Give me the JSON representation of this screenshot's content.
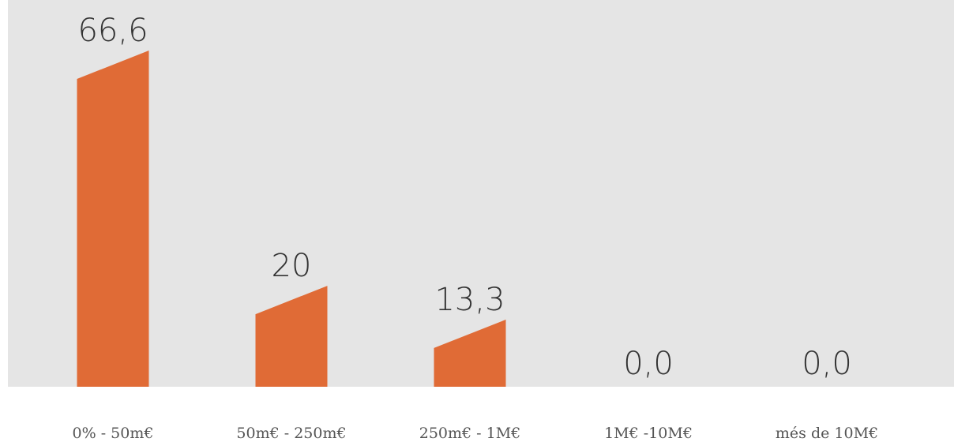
{
  "chart_data": {
    "type": "bar",
    "categories": [
      "0% - 50m€",
      "50m€ - 250m€",
      "250m€ - 1M€",
      "1M€ -10M€",
      "més de 10M€"
    ],
    "values": [
      66.6,
      20,
      13.3,
      0.0,
      0.0
    ],
    "value_labels": [
      "66,6",
      "20",
      "13,3",
      "0,0",
      "0,0"
    ],
    "ylim": [
      0,
      72
    ],
    "grid": false,
    "colors": {
      "bar": "#e06b36",
      "plot_background": "#e5e5e5"
    }
  }
}
